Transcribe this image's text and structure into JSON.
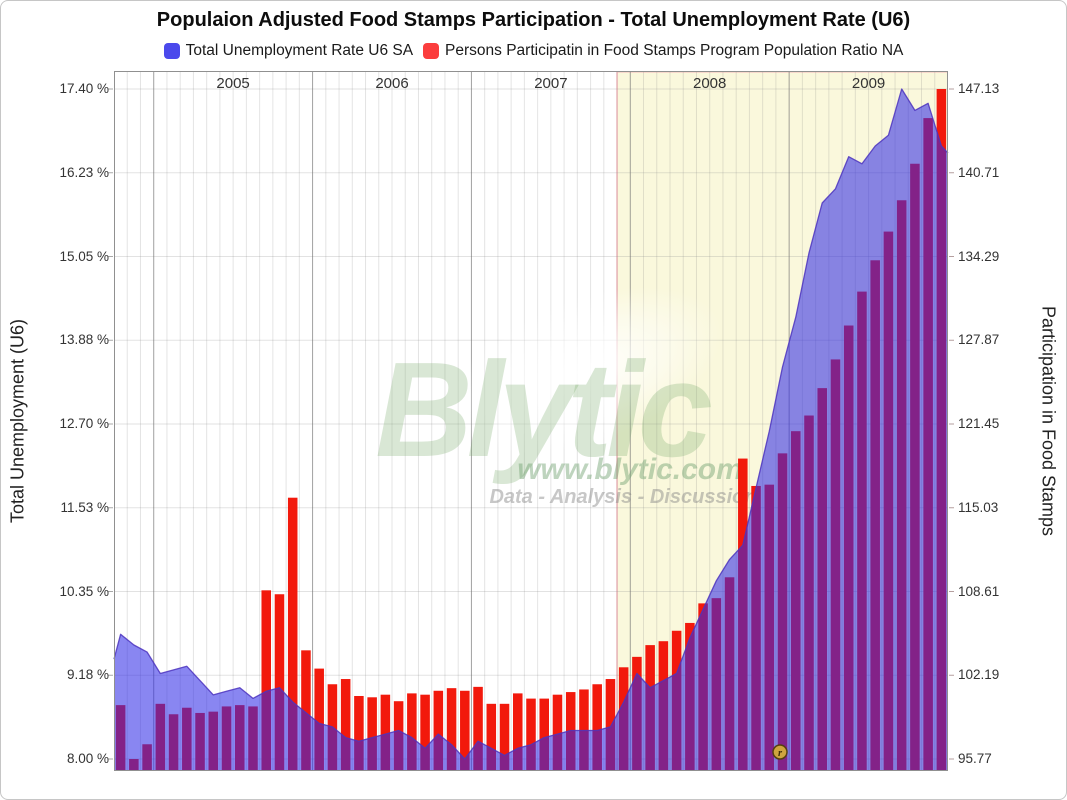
{
  "title": "Populaion Adjusted Food Stamps Participation - Total Unemployment Rate (U6)",
  "legend": [
    {
      "label": "Total Unemployment Rate U6 SA",
      "color": "#4b49ec"
    },
    {
      "label": "Persons Participatin in Food Stamps Program Population Ratio NA",
      "color": "#fb3d3d"
    }
  ],
  "watermark": {
    "brand": "Blytic",
    "url": "www.blytic.com",
    "tagline": "Data - Analysis - Discussion"
  },
  "revision_marker": {
    "label": "r"
  },
  "chart_data": {
    "type": "mixed (bar + area), dual y-axis, monthly time series",
    "title": "Populaion Adjusted Food Stamps Participation - Total Unemployment Rate (U6)",
    "x_year_labels": [
      "2005",
      "2006",
      "2007",
      "2008",
      "2009"
    ],
    "year_start_indices": [
      3,
      15,
      27,
      39,
      51
    ],
    "months": [
      "2004-10",
      "2004-11",
      "2004-12",
      "2005-01",
      "2005-02",
      "2005-03",
      "2005-04",
      "2005-05",
      "2005-06",
      "2005-07",
      "2005-08",
      "2005-09",
      "2005-10",
      "2005-11",
      "2005-12",
      "2006-01",
      "2006-02",
      "2006-03",
      "2006-04",
      "2006-05",
      "2006-06",
      "2006-07",
      "2006-08",
      "2006-09",
      "2006-10",
      "2006-11",
      "2006-12",
      "2007-01",
      "2007-02",
      "2007-03",
      "2007-04",
      "2007-05",
      "2007-06",
      "2007-07",
      "2007-08",
      "2007-09",
      "2007-10",
      "2007-11",
      "2007-12",
      "2008-01",
      "2008-02",
      "2008-03",
      "2008-04",
      "2008-05",
      "2008-06",
      "2008-07",
      "2008-08",
      "2008-09",
      "2008-10",
      "2008-11",
      "2008-12",
      "2009-01",
      "2009-02",
      "2009-03",
      "2009-04",
      "2009-05",
      "2009-06",
      "2009-07",
      "2009-08",
      "2009-09",
      "2009-10",
      "2009-11",
      "2009-12"
    ],
    "series": [
      {
        "name": "Total Unemployment Rate U6 SA",
        "type": "area",
        "axis": "left",
        "fill": "rgba(47,42,230,0.57)",
        "stroke": "rgba(76,52,190,0.85)",
        "values": [
          9.75,
          9.6,
          9.5,
          9.2,
          9.25,
          9.3,
          9.1,
          8.9,
          8.95,
          9.0,
          8.85,
          8.95,
          9.0,
          8.8,
          8.65,
          8.5,
          8.45,
          8.3,
          8.25,
          8.3,
          8.35,
          8.4,
          8.3,
          8.15,
          8.35,
          8.2,
          8.0,
          8.25,
          8.15,
          8.05,
          8.15,
          8.2,
          8.3,
          8.35,
          8.4,
          8.4,
          8.4,
          8.45,
          8.8,
          9.2,
          9.0,
          9.1,
          9.2,
          9.7,
          10.1,
          10.5,
          10.8,
          11.0,
          11.8,
          12.6,
          13.5,
          14.2,
          15.1,
          15.8,
          16.0,
          16.45,
          16.35,
          16.6,
          16.75,
          17.4,
          17.1,
          17.2,
          16.6
        ]
      },
      {
        "name": "Persons Participatin in Food Stamps Program Population Ratio NA",
        "type": "bar",
        "axis": "right",
        "fill": "#f2190c",
        "values": [
          99.9,
          95.77,
          96.9,
          100.0,
          99.2,
          99.7,
          99.3,
          99.4,
          99.8,
          99.9,
          99.8,
          108.7,
          108.4,
          115.8,
          104.1,
          102.7,
          101.5,
          101.9,
          100.6,
          100.5,
          100.7,
          100.2,
          100.8,
          100.7,
          101.0,
          101.2,
          101.0,
          101.3,
          100.0,
          100.0,
          100.8,
          100.4,
          100.4,
          100.7,
          100.9,
          101.1,
          101.5,
          101.9,
          102.8,
          103.6,
          104.5,
          104.8,
          105.6,
          106.2,
          107.7,
          108.1,
          109.7,
          118.8,
          116.7,
          116.8,
          119.2,
          120.9,
          122.1,
          124.2,
          126.4,
          129.0,
          131.6,
          134.0,
          136.2,
          138.6,
          141.4,
          144.9,
          147.13
        ]
      }
    ],
    "left_axis": {
      "label": "Total Unemployment (U6)",
      "min": 8.0,
      "max": 17.4,
      "tick_labels": [
        "17.40 %",
        "16.23 %",
        "15.05 %",
        "13.88 %",
        "12.70 %",
        "11.53 %",
        "10.35 %",
        "9.18 %",
        "8.00 %"
      ]
    },
    "right_axis": {
      "label": "Participation in Food Stamps",
      "min": 95.77,
      "max": 147.13,
      "tick_labels": [
        "147.13",
        "140.71",
        "134.29",
        "127.87",
        "121.45",
        "115.03",
        "108.61",
        "102.19",
        "95.77"
      ]
    },
    "recession_band": {
      "start_month": "2007-12",
      "start_index": 38,
      "fill": "#faf8dc",
      "border": "#f6b9bd"
    },
    "grid": {
      "minor_vertical": "rgba(130,130,130,0.22)",
      "year_vertical": "rgba(110,110,110,0.65)",
      "horizontal": "rgba(150,150,150,0.28)",
      "plot_border": "#909090"
    },
    "marker": {
      "label": "r",
      "fill": "#cfa43e",
      "ring": "#55400e",
      "glyph_color": "#3c2d07"
    },
    "watermark_colors": {
      "brand": "rgba(130,175,115,0.30)",
      "url": "rgba(110,160,110,0.45)",
      "tagline": "rgba(130,130,130,0.45)"
    }
  }
}
